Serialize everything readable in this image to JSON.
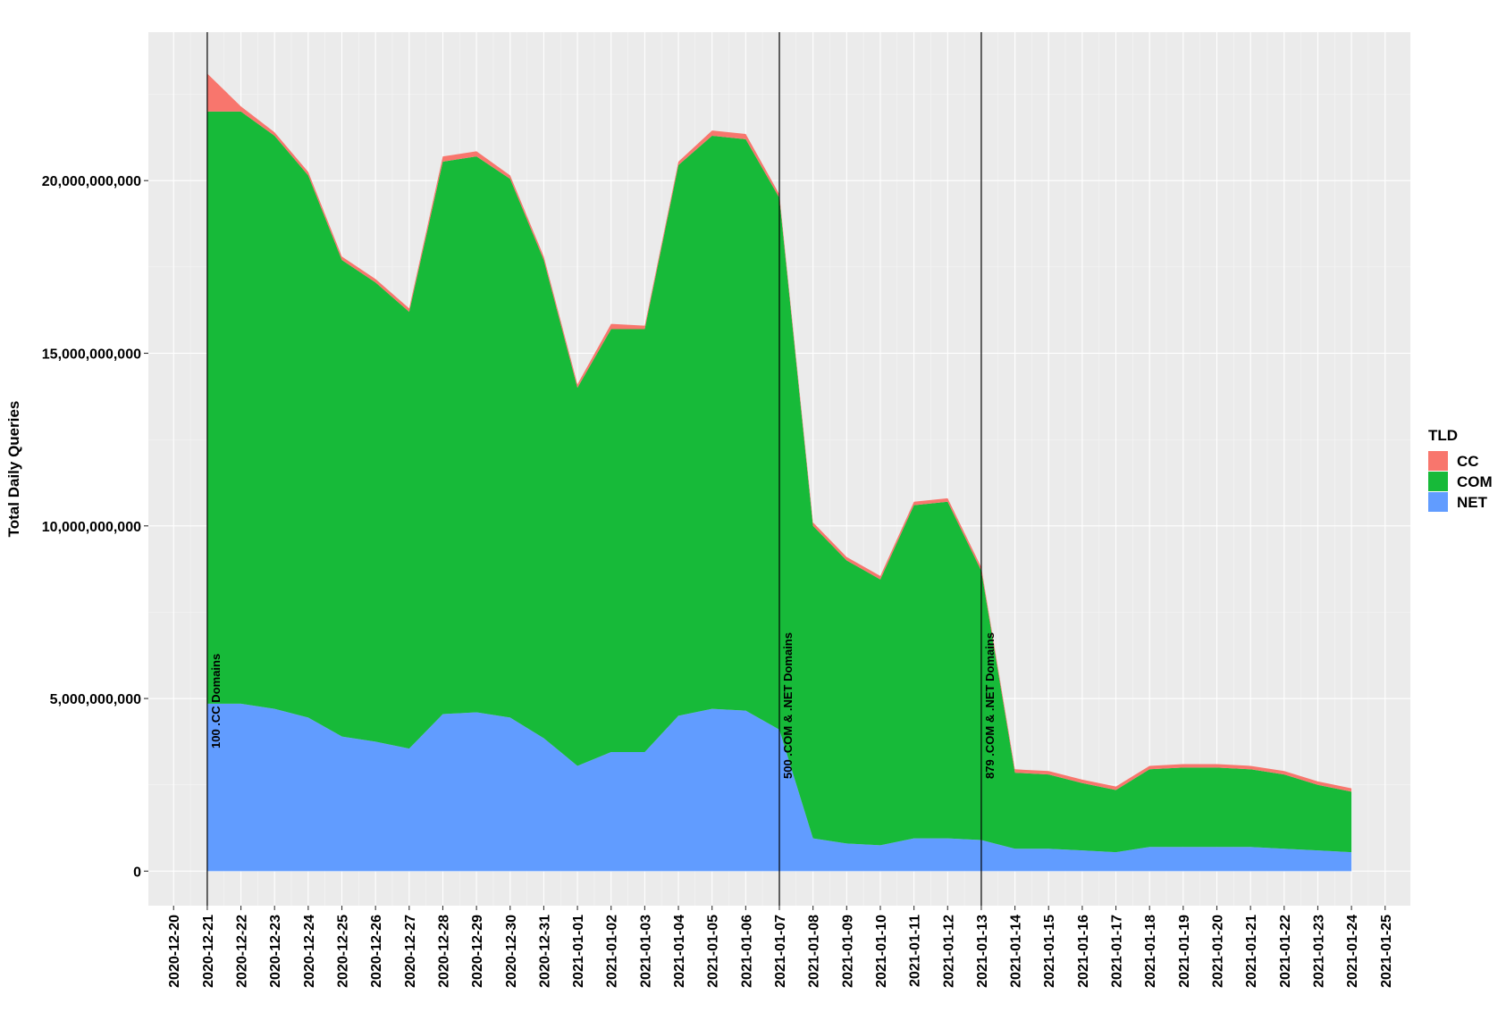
{
  "chart_data": {
    "type": "area",
    "stacked": true,
    "title": "",
    "xlabel": "",
    "ylabel": "Total Daily Queries",
    "x_ticks": [
      "2020-12-20",
      "2020-12-21",
      "2020-12-22",
      "2020-12-23",
      "2020-12-24",
      "2020-12-25",
      "2020-12-26",
      "2020-12-27",
      "2020-12-28",
      "2020-12-29",
      "2020-12-30",
      "2020-12-31",
      "2021-01-01",
      "2021-01-02",
      "2021-01-03",
      "2021-01-04",
      "2021-01-05",
      "2021-01-06",
      "2021-01-07",
      "2021-01-08",
      "2021-01-09",
      "2021-01-10",
      "2021-01-11",
      "2021-01-12",
      "2021-01-13",
      "2021-01-14",
      "2021-01-15",
      "2021-01-16",
      "2021-01-17",
      "2021-01-18",
      "2021-01-19",
      "2021-01-20",
      "2021-01-21",
      "2021-01-22",
      "2021-01-23",
      "2021-01-24",
      "2021-01-25"
    ],
    "y_ticks": [
      0,
      5000000000,
      10000000000,
      15000000000,
      20000000000
    ],
    "y_tick_labels": [
      "0",
      "5,000,000,000",
      "10,000,000,000",
      "15,000,000,000",
      "20,000,000,000"
    ],
    "ylim": [
      -1000000000,
      24300000000
    ],
    "x": [
      "2020-12-21",
      "2020-12-22",
      "2020-12-23",
      "2020-12-24",
      "2020-12-25",
      "2020-12-26",
      "2020-12-27",
      "2020-12-28",
      "2020-12-29",
      "2020-12-30",
      "2020-12-31",
      "2021-01-01",
      "2021-01-02",
      "2021-01-03",
      "2021-01-04",
      "2021-01-05",
      "2021-01-06",
      "2021-01-07",
      "2021-01-08",
      "2021-01-09",
      "2021-01-10",
      "2021-01-11",
      "2021-01-12",
      "2021-01-13",
      "2021-01-14",
      "2021-01-15",
      "2021-01-16",
      "2021-01-17",
      "2021-01-18",
      "2021-01-19",
      "2021-01-20",
      "2021-01-21",
      "2021-01-22",
      "2021-01-23",
      "2021-01-24"
    ],
    "series": [
      {
        "name": "NET",
        "color": "#619CFF",
        "values": [
          4850000000,
          4850000000,
          4700000000,
          4450000000,
          3900000000,
          3750000000,
          3550000000,
          4550000000,
          4600000000,
          4450000000,
          3850000000,
          3050000000,
          3450000000,
          3450000000,
          4500000000,
          4700000000,
          4650000000,
          4100000000,
          950000000,
          800000000,
          750000000,
          950000000,
          950000000,
          900000000,
          650000000,
          650000000,
          600000000,
          550000000,
          700000000,
          700000000,
          700000000,
          700000000,
          650000000,
          600000000,
          550000000
        ]
      },
      {
        "name": "COM",
        "color": "#17BA39",
        "values": [
          17150000000,
          17150000000,
          16600000000,
          15700000000,
          13800000000,
          13300000000,
          12650000000,
          16000000000,
          16100000000,
          15600000000,
          13850000000,
          10950000000,
          12250000000,
          12250000000,
          15950000000,
          16600000000,
          16550000000,
          15400000000,
          9050000000,
          8200000000,
          7700000000,
          9650000000,
          9750000000,
          7800000000,
          2200000000,
          2150000000,
          1950000000,
          1800000000,
          2250000000,
          2300000000,
          2300000000,
          2250000000,
          2150000000,
          1900000000,
          1750000000
        ]
      },
      {
        "name": "CC",
        "color": "#F8766D",
        "values": [
          1100000000,
          150000000,
          100000000,
          100000000,
          100000000,
          100000000,
          100000000,
          150000000,
          150000000,
          100000000,
          100000000,
          100000000,
          150000000,
          100000000,
          100000000,
          150000000,
          150000000,
          100000000,
          100000000,
          100000000,
          100000000,
          100000000,
          100000000,
          100000000,
          100000000,
          100000000,
          100000000,
          100000000,
          100000000,
          100000000,
          100000000,
          100000000,
          100000000,
          100000000,
          100000000
        ]
      }
    ],
    "annotations": [
      {
        "x": "2020-12-21",
        "label": "100 .CC Domains"
      },
      {
        "x": "2021-01-07",
        "label": "500 .COM & .NET Domains"
      },
      {
        "x": "2021-01-13",
        "label": "879 .COM & .NET Domains"
      }
    ],
    "legend": {
      "title": "TLD",
      "position": "right",
      "entries": [
        {
          "label": "CC",
          "color": "#F8766D"
        },
        {
          "label": "COM",
          "color": "#17BA39"
        },
        {
          "label": "NET",
          "color": "#619CFF"
        }
      ]
    },
    "grid": true,
    "panel_background": "#EBEBEB"
  }
}
